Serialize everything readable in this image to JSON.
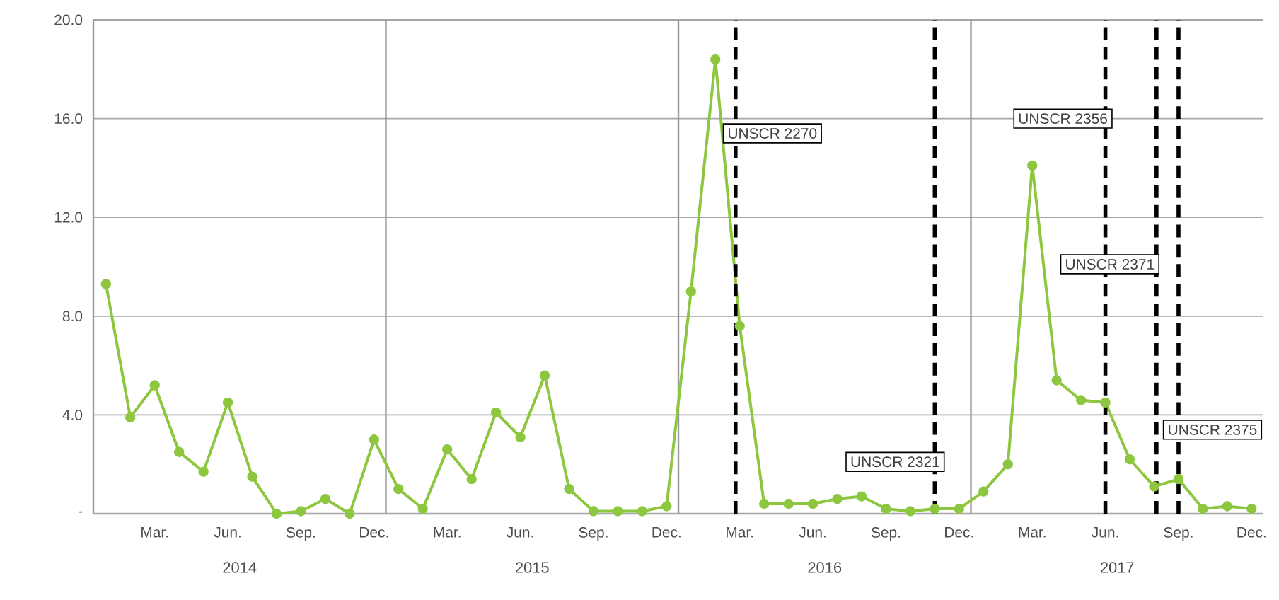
{
  "chart_data": {
    "type": "line",
    "x": [
      "2014-01",
      "2014-02",
      "2014-03",
      "2014-04",
      "2014-05",
      "2014-06",
      "2014-07",
      "2014-08",
      "2014-09",
      "2014-10",
      "2014-11",
      "2014-12",
      "2015-01",
      "2015-02",
      "2015-03",
      "2015-04",
      "2015-05",
      "2015-06",
      "2015-07",
      "2015-08",
      "2015-09",
      "2015-10",
      "2015-11",
      "2015-12",
      "2016-01",
      "2016-02",
      "2016-03",
      "2016-04",
      "2016-05",
      "2016-06",
      "2016-07",
      "2016-08",
      "2016-09",
      "2016-10",
      "2016-11",
      "2016-12",
      "2017-01",
      "2017-02",
      "2017-03",
      "2017-04",
      "2017-05",
      "2017-06",
      "2017-07",
      "2017-08",
      "2017-09",
      "2017-10",
      "2017-11",
      "2017-12"
    ],
    "series": [
      {
        "color": "#8dc63f",
        "values": [
          9.3,
          3.9,
          5.2,
          2.5,
          1.7,
          4.5,
          1.5,
          0.0,
          0.1,
          0.6,
          0.0,
          3.0,
          1.0,
          0.2,
          2.6,
          1.4,
          4.1,
          3.1,
          5.6,
          1.0,
          0.1,
          0.1,
          0.1,
          0.3,
          9.0,
          18.4,
          7.6,
          0.4,
          0.4,
          0.4,
          0.6,
          0.7,
          0.2,
          0.1,
          0.2,
          0.2,
          0.9,
          2.0,
          14.1,
          5.4,
          4.6,
          4.5,
          2.2,
          1.1,
          1.4,
          0.2,
          0.3,
          0.2
        ]
      }
    ],
    "xlim": [
      "2013-12-16",
      "2017-12-16"
    ],
    "xticks": [
      {
        "value": "2014-03",
        "label": "Mar."
      },
      {
        "value": "2014-06",
        "label": "Jun."
      },
      {
        "value": "2014-09",
        "label": "Sep."
      },
      {
        "value": "2014-12",
        "label": "Dec."
      },
      {
        "value": "2015-03",
        "label": "Mar."
      },
      {
        "value": "2015-06",
        "label": "Jun."
      },
      {
        "value": "2015-09",
        "label": "Sep."
      },
      {
        "value": "2015-12",
        "label": "Dec."
      },
      {
        "value": "2016-03",
        "label": "Mar."
      },
      {
        "value": "2016-06",
        "label": "Jun."
      },
      {
        "value": "2016-09",
        "label": "Sep."
      },
      {
        "value": "2016-12",
        "label": "Dec."
      },
      {
        "value": "2017-03",
        "label": "Mar."
      },
      {
        "value": "2017-06",
        "label": "Jun."
      },
      {
        "value": "2017-09",
        "label": "Sep."
      },
      {
        "value": "2017-12",
        "label": "Dec."
      }
    ],
    "ylim": [
      0,
      20
    ],
    "yticks": [
      {
        "value": 0,
        "label": "-"
      },
      {
        "value": 4,
        "label": "4.0"
      },
      {
        "value": 8,
        "label": "8.0"
      },
      {
        "value": 12,
        "label": "12.0"
      },
      {
        "value": 16,
        "label": "16.0"
      },
      {
        "value": 20,
        "label": "20.0"
      }
    ],
    "grid": true,
    "marker": "circle",
    "line_style": "solid",
    "ref_lines": [
      {
        "axis": "x",
        "value": "2016-02-25",
        "label": "UNSCR 2270",
        "color": "#000000",
        "line_style": "dashed"
      },
      {
        "axis": "x",
        "value": "2016-11-01",
        "label": "UNSCR 2321",
        "color": "#000000",
        "line_style": "dashed"
      },
      {
        "axis": "x",
        "value": "2017-06-01",
        "label": "UNSCR 2356",
        "color": "#000000",
        "line_style": "dashed"
      },
      {
        "axis": "x",
        "value": "2017-08-04",
        "label": "UNSCR 2371",
        "color": "#000000",
        "line_style": "dashed"
      },
      {
        "axis": "x",
        "value": "2017-09-01",
        "label": "UNSCR 2375",
        "color": "#000000",
        "line_style": "dashed"
      }
    ],
    "annotations": [
      "2014",
      "2015",
      "2016",
      "2017"
    ]
  }
}
